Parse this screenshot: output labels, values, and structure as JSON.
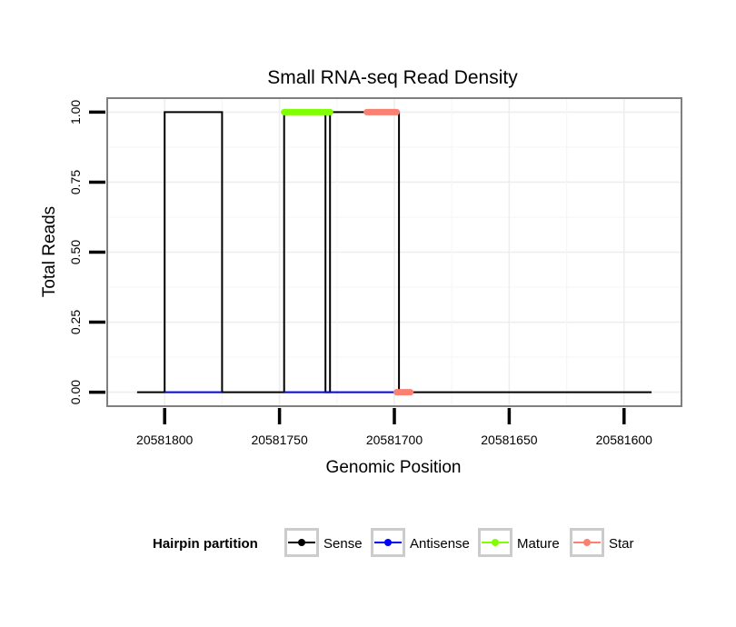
{
  "chart_data": {
    "type": "line",
    "title": "Small RNA-seq Read Density",
    "xlabel": "Genomic Position",
    "ylabel": "Total Reads",
    "x_reversed": true,
    "xlim": [
      20581825,
      20581575
    ],
    "ylim": [
      -0.05,
      1.05
    ],
    "x_ticks": [
      20581800,
      20581750,
      20581700,
      20581650,
      20581600
    ],
    "x_tick_labels": [
      "20581800",
      "20581750",
      "20581700",
      "20581650",
      "20581600"
    ],
    "y_ticks": [
      0,
      0.25,
      0.5,
      0.75,
      1.0
    ],
    "y_tick_labels": [
      "0.00",
      "0.25",
      "0.50",
      "0.75",
      "1.00"
    ],
    "grid": true,
    "legend": {
      "title": "Hairpin partition",
      "position": "bottom",
      "entries": [
        {
          "label": "Sense",
          "color": "#000000"
        },
        {
          "label": "Antisense",
          "color": "#0000ff"
        },
        {
          "label": "Mature",
          "color": "#7fff00"
        },
        {
          "label": "Star",
          "color": "#fa8072"
        }
      ]
    },
    "series": [
      {
        "name": "Sense",
        "color": "#000000",
        "kind": "line",
        "x": [
          20581812,
          20581800,
          20581800,
          20581775,
          20581775,
          20581748,
          20581748,
          20581730,
          20581730,
          20581728,
          20581728,
          20581698,
          20581698,
          20581588
        ],
        "y": [
          0,
          0,
          1,
          1,
          0,
          0,
          1,
          1,
          0,
          0,
          1,
          1,
          0,
          0
        ]
      },
      {
        "name": "Antisense",
        "color": "#0000ff",
        "kind": "line",
        "segments": [
          {
            "x": [
              20581800,
              20581775
            ],
            "y": [
              0,
              0
            ]
          },
          {
            "x": [
              20581748,
              20581728
            ],
            "y": [
              0,
              0
            ]
          },
          {
            "x": [
              20581728,
              20581698
            ],
            "y": [
              0,
              0
            ]
          }
        ]
      },
      {
        "name": "Mature",
        "color": "#7fff00",
        "kind": "interval",
        "intervals": [
          {
            "x": [
              20581748,
              20581728
            ],
            "y": 1.0
          }
        ]
      },
      {
        "name": "Star",
        "color": "#fa8072",
        "kind": "interval",
        "intervals": [
          {
            "x": [
              20581712,
              20581699
            ],
            "y": 1.0
          },
          {
            "x": [
              20581699,
              20581693
            ],
            "y": 0.0
          }
        ]
      }
    ]
  }
}
